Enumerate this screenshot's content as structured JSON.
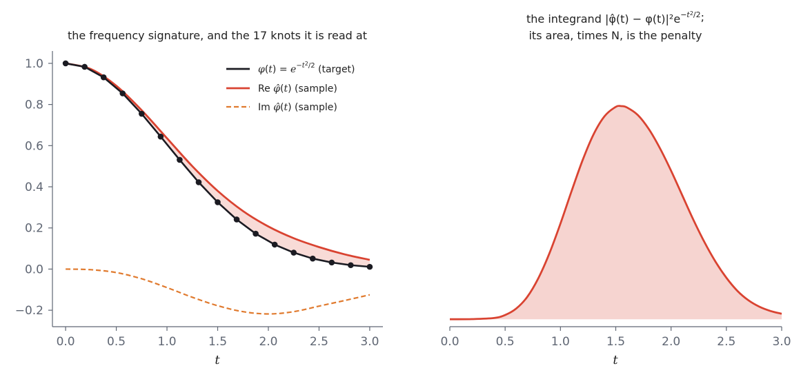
{
  "chart_data": [
    {
      "type": "line",
      "title": "the frequency signature, and the 17 knots it is read at",
      "xlabel": "t",
      "ylabel": "",
      "xlim": [
        -0.13,
        3.13
      ],
      "ylim": [
        -0.28,
        1.06
      ],
      "x_ticks": [
        "0.0",
        "0.5",
        "1.0",
        "1.5",
        "2.0",
        "2.5",
        "3.0"
      ],
      "y_ticks": [
        "−0.2",
        "0.0",
        "0.2",
        "0.4",
        "0.6",
        "0.8",
        "1.0"
      ],
      "grid": false,
      "legend_position": "top-right",
      "colors": {
        "target": "#1b1b22",
        "real": "#d94331",
        "imag": "#e07a2e",
        "fill": "#f6cfca",
        "axis": "#5f6673"
      },
      "series": [
        {
          "name": "φ(t) = e^{−t²/2}  (target)",
          "role": "target",
          "style": "solid",
          "markers": true,
          "x": [
            0.0,
            0.1875,
            0.375,
            0.5625,
            0.75,
            0.9375,
            1.125,
            1.3125,
            1.5,
            1.6875,
            1.875,
            2.0625,
            2.25,
            2.4375,
            2.625,
            2.8125,
            3.0
          ],
          "y": [
            1.0,
            0.983,
            0.932,
            0.854,
            0.755,
            0.644,
            0.531,
            0.422,
            0.325,
            0.241,
            0.172,
            0.119,
            0.08,
            0.051,
            0.032,
            0.019,
            0.011
          ]
        },
        {
          "name": "Re φ̂(t)  (sample)",
          "role": "real",
          "style": "solid",
          "x": [
            0.0,
            0.25,
            0.5,
            0.75,
            1.0,
            1.25,
            1.5,
            1.75,
            2.0,
            2.25,
            2.5,
            2.75,
            3.0
          ],
          "y": [
            1.0,
            0.972,
            0.891,
            0.772,
            0.636,
            0.5,
            0.38,
            0.282,
            0.207,
            0.15,
            0.107,
            0.072,
            0.045
          ]
        },
        {
          "name": "Im φ̂(t)  (sample)",
          "role": "imag",
          "style": "dashed",
          "x": [
            0.0,
            0.25,
            0.5,
            0.75,
            1.0,
            1.25,
            1.5,
            1.75,
            2.0,
            2.25,
            2.5,
            2.75,
            3.0
          ],
          "y": [
            0.0,
            -0.003,
            -0.017,
            -0.047,
            -0.09,
            -0.137,
            -0.178,
            -0.207,
            -0.218,
            -0.207,
            -0.18,
            -0.153,
            -0.125
          ]
        }
      ]
    },
    {
      "type": "area",
      "title": "the integrand |φ̂(t) − φ(t)|² e^{−t²/2}; its area, times N, is the penalty",
      "title_lines": [
        "the integrand |φ̂(t) − φ(t)|²e",
        "its area, times N, is the penalty"
      ],
      "xlabel": "t",
      "ylabel": "",
      "xlim": [
        0.0,
        3.0
      ],
      "ylim": [
        -0.03,
        1.08
      ],
      "x_ticks": [
        "0.0",
        "0.5",
        "1.0",
        "1.5",
        "2.0",
        "2.5",
        "3.0"
      ],
      "y_ticks_visible": false,
      "grid": false,
      "colors": {
        "line": "#d94331",
        "fill": "#f6d4d0",
        "axis": "#5f6673"
      },
      "series": [
        {
          "name": "",
          "x": [
            0.0,
            0.2,
            0.4,
            0.5,
            0.6,
            0.7,
            0.8,
            0.9,
            1.0,
            1.1,
            1.2,
            1.3,
            1.4,
            1.5,
            1.55,
            1.6,
            1.7,
            1.8,
            1.9,
            2.0,
            2.1,
            2.2,
            2.3,
            2.4,
            2.5,
            2.6,
            2.7,
            2.8,
            2.9,
            3.0
          ],
          "y": [
            0.0,
            0.0005,
            0.005,
            0.017,
            0.043,
            0.09,
            0.165,
            0.265,
            0.385,
            0.515,
            0.64,
            0.745,
            0.818,
            0.855,
            0.858,
            0.853,
            0.822,
            0.765,
            0.688,
            0.598,
            0.5,
            0.402,
            0.312,
            0.233,
            0.167,
            0.114,
            0.076,
            0.05,
            0.033,
            0.022
          ]
        }
      ]
    }
  ]
}
